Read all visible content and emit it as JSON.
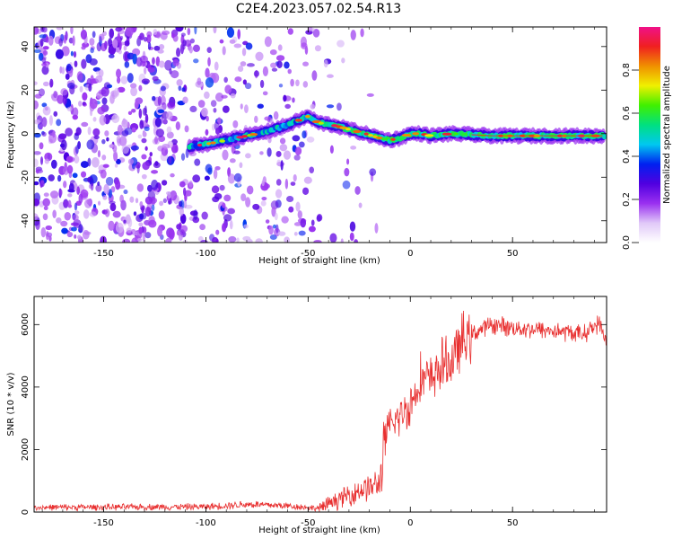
{
  "title": "C2E4.2023.057.02.54.R13",
  "chart_data": [
    {
      "type": "heatmap",
      "name": "spectrogram",
      "xlabel": "Height of straight line (km)",
      "ylabel": "Frequency (Hz)",
      "xlim": [
        -184,
        96
      ],
      "ylim": [
        -50,
        49
      ],
      "xticks": [
        -150,
        -100,
        -50,
        0,
        50
      ],
      "yticks": [
        -40,
        -20,
        0,
        20,
        40
      ],
      "ridge": {
        "x_start": -108,
        "x_end": 95,
        "points": [
          [
            -108,
            -6
          ],
          [
            -95,
            -4
          ],
          [
            -80,
            -1
          ],
          [
            -70,
            1
          ],
          [
            -60,
            4
          ],
          [
            -50,
            8
          ],
          [
            -45,
            5
          ],
          [
            -38,
            4
          ],
          [
            -30,
            2
          ],
          [
            -22,
            0
          ],
          [
            -15,
            -2
          ],
          [
            -10,
            -3
          ],
          [
            -5,
            -2
          ],
          [
            0,
            0
          ],
          [
            5,
            0
          ],
          [
            10,
            -1
          ],
          [
            20,
            0
          ],
          [
            40,
            -1
          ],
          [
            60,
            -1
          ],
          [
            95,
            -1
          ]
        ]
      },
      "noise_region_x": [
        -184,
        -45
      ],
      "colorbar": {
        "label": "Normalized spectral amplitude",
        "range": [
          0,
          1
        ],
        "ticks": [
          0.0,
          0.2,
          0.4,
          0.6,
          0.8
        ],
        "tick_labels": [
          "0.0",
          "0.2",
          "0.4",
          "0.6",
          "0.8"
        ],
        "colors": [
          "#ffffff",
          "#e0c8f8",
          "#9a30f0",
          "#5000e0",
          "#0020f0",
          "#00c8f0",
          "#00e080",
          "#40f000",
          "#f0f000",
          "#f09000",
          "#f02020",
          "#f01088"
        ]
      }
    },
    {
      "type": "line",
      "name": "snr",
      "xlabel": "Height of straight line (km)",
      "ylabel": "SNR (10 * v/v)",
      "xlim": [
        -184,
        96
      ],
      "ylim": [
        0,
        6900
      ],
      "xticks": [
        -150,
        -100,
        -50,
        0,
        50
      ],
      "yticks": [
        0,
        2000,
        4000,
        6000
      ],
      "color": "#e83030",
      "trend": [
        [
          -184,
          150
        ],
        [
          -100,
          170
        ],
        [
          -80,
          250
        ],
        [
          -60,
          200
        ],
        [
          -45,
          120
        ],
        [
          -35,
          400
        ],
        [
          -25,
          700
        ],
        [
          -15,
          900
        ],
        [
          -12,
          2500
        ],
        [
          -5,
          3100
        ],
        [
          0,
          3400
        ],
        [
          5,
          4300
        ],
        [
          10,
          4200
        ],
        [
          15,
          4700
        ],
        [
          20,
          4800
        ],
        [
          25,
          5400
        ],
        [
          30,
          5700
        ],
        [
          40,
          6000
        ],
        [
          50,
          5900
        ],
        [
          70,
          5800
        ],
        [
          85,
          5700
        ],
        [
          92,
          6050
        ],
        [
          96,
          5500
        ]
      ]
    }
  ]
}
